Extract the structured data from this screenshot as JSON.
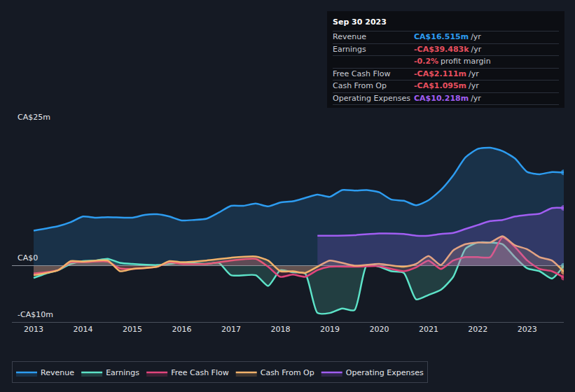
{
  "chart_data": {
    "type": "line",
    "xlim": [
      2012.56,
      2023.74
    ],
    "xticks": [
      2013,
      2014,
      2015,
      2016,
      2017,
      2018,
      2019,
      2020,
      2021,
      2022,
      2023
    ],
    "ylim": [
      -10,
      25
    ],
    "yticks": [
      {
        "value": -10,
        "label": "-CA$10m"
      },
      {
        "value": 0,
        "label": "CA$0"
      },
      {
        "value": 25,
        "label": "CA$25m"
      }
    ],
    "grid": true,
    "legend": "bottom",
    "series": [
      {
        "name": "Revenue",
        "color": "#2d9cf0",
        "x": [
          2013,
          2013.5,
          2013.75,
          2014,
          2014.25,
          2014.5,
          2015,
          2015.25,
          2015.5,
          2015.75,
          2016,
          2016.25,
          2016.5,
          2016.75,
          2017,
          2017.25,
          2017.5,
          2017.75,
          2018,
          2018.25,
          2018.5,
          2018.75,
          2019,
          2019.25,
          2019.5,
          2019.75,
          2020,
          2020.25,
          2020.5,
          2020.75,
          2021,
          2021.25,
          2021.5,
          2021.75,
          2022,
          2022.25,
          2022.5,
          2022.75,
          2023,
          2023.25,
          2023.5,
          2023.74
        ],
        "values": [
          6.2,
          7.0,
          7.7,
          8.7,
          8.5,
          8.6,
          8.5,
          9.0,
          9.1,
          8.7,
          8.0,
          8.1,
          8.3,
          9.4,
          10.6,
          10.6,
          11.0,
          10.5,
          11.2,
          11.4,
          12.0,
          12.6,
          12.2,
          13.4,
          13.3,
          13.4,
          13.0,
          11.7,
          11.5,
          10.7,
          11.6,
          13.4,
          16.0,
          19.2,
          20.7,
          20.9,
          20.3,
          19.0,
          16.6,
          16.2,
          16.6,
          16.515
        ]
      },
      {
        "name": "Earnings",
        "color": "#5de3c8",
        "x": [
          2013,
          2013.25,
          2013.5,
          2013.75,
          2014,
          2014.25,
          2014.5,
          2014.75,
          2015,
          2015.5,
          2016,
          2016.5,
          2016.75,
          2017,
          2017.5,
          2017.75,
          2018,
          2018.25,
          2018.5,
          2018.75,
          2019,
          2019.25,
          2019.5,
          2019.75,
          2020,
          2020.25,
          2020.5,
          2020.75,
          2021,
          2021.25,
          2021.5,
          2021.75,
          2022,
          2022.25,
          2022.5,
          2022.75,
          2023,
          2023.25,
          2023.5,
          2023.74
        ],
        "values": [
          -2.2,
          -1.4,
          -0.8,
          0.3,
          0.8,
          0.9,
          1.2,
          0.5,
          0.3,
          0.1,
          0.5,
          0.3,
          0.5,
          -1.7,
          -1.7,
          -3.6,
          -0.8,
          -1.2,
          -1.4,
          -8.4,
          -8.4,
          -7.6,
          -7.9,
          0.1,
          -0.2,
          -1.0,
          -1.3,
          -6.0,
          -5.2,
          -4.3,
          -2.0,
          3.0,
          4.1,
          4.1,
          3.8,
          1.5,
          -0.5,
          -1.0,
          -2.3,
          -0.039483
        ]
      },
      {
        "name": "Free Cash Flow",
        "color": "#e2457c",
        "x": [
          2013,
          2013.5,
          2013.75,
          2014,
          2014.5,
          2014.75,
          2015,
          2015.5,
          2015.75,
          2016,
          2016.5,
          2017,
          2017.5,
          2017.75,
          2018,
          2018.25,
          2018.5,
          2018.75,
          2019,
          2019.5,
          2020,
          2020.25,
          2020.5,
          2020.75,
          2021,
          2021.25,
          2021.5,
          2021.75,
          2022,
          2022.25,
          2022.5,
          2022.75,
          2023,
          2023.25,
          2023.5,
          2023.74
        ],
        "values": [
          -1.4,
          -0.8,
          0.6,
          0.6,
          0.7,
          -0.5,
          -0.6,
          -0.2,
          0.6,
          0.3,
          0.3,
          0.9,
          1.2,
          -0.2,
          -2.0,
          -1.6,
          -2.0,
          -0.8,
          -0.2,
          -0.2,
          -0.1,
          -0.6,
          -1.0,
          -0.3,
          0.9,
          -0.6,
          0.9,
          1.5,
          1.5,
          1.5,
          5.0,
          3.3,
          0.9,
          -0.6,
          -1.0,
          -2.111
        ]
      },
      {
        "name": "Cash From Op",
        "color": "#f2b26b",
        "x": [
          2013,
          2013.5,
          2013.75,
          2014,
          2014.5,
          2014.75,
          2015,
          2015.5,
          2015.75,
          2016,
          2016.5,
          2017,
          2017.5,
          2017.75,
          2018,
          2018.25,
          2018.5,
          2018.75,
          2019,
          2019.5,
          2020,
          2020.5,
          2020.75,
          2021,
          2021.25,
          2021.5,
          2021.75,
          2022,
          2022.25,
          2022.5,
          2022.75,
          2023,
          2023.25,
          2023.5,
          2023.74
        ],
        "values": [
          -1.7,
          -0.8,
          0.8,
          0.7,
          0.9,
          -1.0,
          -0.6,
          -0.2,
          0.8,
          0.6,
          0.9,
          1.4,
          1.6,
          0.9,
          -1.0,
          -1.0,
          -1.3,
          -0.2,
          0.9,
          0.0,
          0.3,
          -0.2,
          0.3,
          1.7,
          0.1,
          2.7,
          3.8,
          4.1,
          4.1,
          5.2,
          3.6,
          2.9,
          1.5,
          0.9,
          -1.095
        ]
      },
      {
        "name": "Operating Expenses",
        "color": "#a15ef2",
        "x": [
          2018.75,
          2019,
          2019.5,
          2020,
          2020.5,
          2020.75,
          2021,
          2021.25,
          2021.5,
          2021.75,
          2022,
          2022.25,
          2022.5,
          2022.75,
          2023,
          2023.25,
          2023.5,
          2023.74
        ],
        "values": [
          5.3,
          5.3,
          5.4,
          5.7,
          5.6,
          5.3,
          5.3,
          5.6,
          5.8,
          6.5,
          7.2,
          7.9,
          8.1,
          8.7,
          9.0,
          9.2,
          10.2,
          10.218
        ]
      }
    ],
    "tooltip": {
      "title": "Sep 30 2023",
      "rows": [
        {
          "label": "Revenue",
          "value": "CA$16.515m",
          "unit": "/yr",
          "color": "#2d9cf0"
        },
        {
          "label": "Earnings",
          "value": "-CA$39.483k",
          "unit": "/yr",
          "color": "#e84f5e"
        },
        {
          "value": "-0.2%",
          "unit": "profit margin",
          "color": "#e84f5e"
        },
        {
          "label": "Free Cash Flow",
          "value": "-CA$2.111m",
          "unit": "/yr",
          "color": "#e84f5e"
        },
        {
          "label": "Cash From Op",
          "value": "-CA$1.095m",
          "unit": "/yr",
          "color": "#e84f5e"
        },
        {
          "label": "Operating Expenses",
          "value": "CA$10.218m",
          "unit": "/yr",
          "color": "#a15ef2"
        }
      ]
    }
  }
}
